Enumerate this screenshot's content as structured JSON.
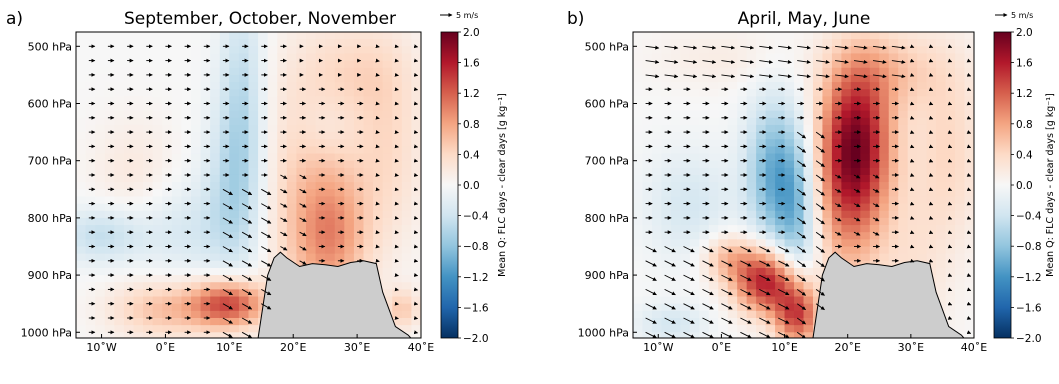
{
  "chart_data": [
    {
      "type": "heatmap",
      "panel_label": "a)",
      "title": "September, October, November",
      "xlabel": "",
      "ylabel": "",
      "xlim": [
        -14,
        40
      ],
      "ylim": [
        1010,
        475
      ],
      "xticks": [
        {
          "v": -10,
          "label": "10˚W"
        },
        {
          "v": 0,
          "label": "0˚E"
        },
        {
          "v": 10,
          "label": "10˚E"
        },
        {
          "v": 20,
          "label": "20˚E"
        },
        {
          "v": 30,
          "label": "30˚E"
        },
        {
          "v": 40,
          "label": "40˚E"
        }
      ],
      "yticks": [
        {
          "v": 500,
          "label": "500 hPa"
        },
        {
          "v": 600,
          "label": "600 hPa"
        },
        {
          "v": 700,
          "label": "700 hPa"
        },
        {
          "v": 800,
          "label": "800 hPa"
        },
        {
          "v": 900,
          "label": "900 hPa"
        },
        {
          "v": 1000,
          "label": "1000 hPa"
        }
      ],
      "blobs": [
        {
          "x": 12,
          "p": 580,
          "sx": 2.5,
          "sp": 130,
          "a": -0.5
        },
        {
          "x": 11,
          "p": 760,
          "sx": 3.5,
          "sp": 110,
          "a": -0.55
        },
        {
          "x": -10,
          "p": 830,
          "sx": 5,
          "sp": 35,
          "a": -0.5
        },
        {
          "x": 3,
          "p": 820,
          "sx": 5,
          "sp": 60,
          "a": -0.3
        },
        {
          "x": 10,
          "p": 950,
          "sx": 4,
          "sp": 30,
          "a": 1.3
        },
        {
          "x": 0,
          "p": 960,
          "sx": 6,
          "sp": 35,
          "a": 0.6
        },
        {
          "x": 26,
          "p": 830,
          "sx": 4,
          "sp": 80,
          "a": 0.7
        },
        {
          "x": 22,
          "p": 750,
          "sx": 6,
          "sp": 160,
          "a": 0.45
        },
        {
          "x": 35,
          "p": 680,
          "sx": 4,
          "sp": 120,
          "a": 0.35
        },
        {
          "x": 30,
          "p": 540,
          "sx": 6,
          "sp": 60,
          "a": 0.3
        },
        {
          "x": 25,
          "p": 640,
          "sx": 3,
          "sp": 40,
          "a": -0.15
        },
        {
          "x": -5,
          "p": 720,
          "sx": 5,
          "sp": 70,
          "a": 0.2
        },
        {
          "x": 37,
          "p": 960,
          "sx": 2,
          "sp": 25,
          "a": 0.5
        }
      ],
      "wind_mode": "sep",
      "terrain": {
        "x": [
          14.5,
          16,
          17,
          18,
          19,
          21,
          23,
          25,
          27,
          29,
          31,
          33,
          34,
          36,
          38,
          38.4
        ],
        "p": [
          1010,
          900,
          870,
          860,
          870,
          885,
          880,
          882,
          885,
          878,
          875,
          880,
          930,
          990,
          1005,
          1010
        ]
      },
      "colorbar": {
        "label": "Mean Q: FLC days - clear days [g kg⁻¹]",
        "ticks": [
          "2.0",
          "1.6",
          "1.2",
          "0.8",
          "0.4",
          "0.0",
          "−0.4",
          "−0.8",
          "−1.2",
          "−1.6",
          "−2.0"
        ],
        "vmin": -2.0,
        "vmax": 2.0
      },
      "quiver_key": {
        "label": "5 m/s"
      },
      "colors": {
        "terrain": "#cdcdcd",
        "positive": "#67001f",
        "negative": "#053061"
      }
    },
    {
      "type": "heatmap",
      "panel_label": "b)",
      "title": "April, May, June",
      "xlabel": "",
      "ylabel": "",
      "xlim": [
        -14,
        40
      ],
      "ylim": [
        1010,
        475
      ],
      "xticks": [
        {
          "v": -10,
          "label": "10˚W"
        },
        {
          "v": 0,
          "label": "0˚E"
        },
        {
          "v": 10,
          "label": "10˚E"
        },
        {
          "v": 20,
          "label": "20˚E"
        },
        {
          "v": 30,
          "label": "30˚E"
        },
        {
          "v": 40,
          "label": "40˚E"
        }
      ],
      "yticks": [
        {
          "v": 500,
          "label": "500 hPa"
        },
        {
          "v": 600,
          "label": "600 hPa"
        },
        {
          "v": 700,
          "label": "700 hPa"
        },
        {
          "v": 800,
          "label": "800 hPa"
        },
        {
          "v": 900,
          "label": "900 hPa"
        },
        {
          "v": 1000,
          "label": "1000 hPa"
        }
      ],
      "blobs": [
        {
          "x": 21.5,
          "p": 660,
          "sx": 4,
          "sp": 95,
          "a": 1.5
        },
        {
          "x": 20,
          "p": 770,
          "sx": 4,
          "sp": 110,
          "a": 0.8
        },
        {
          "x": 7,
          "p": 910,
          "sx": 3.5,
          "sp": 40,
          "a": 1.6
        },
        {
          "x": 12,
          "p": 970,
          "sx": 2.5,
          "sp": 40,
          "a": 1.4
        },
        {
          "x": 1,
          "p": 870,
          "sx": 3,
          "sp": 30,
          "a": 0.6
        },
        {
          "x": 8,
          "p": 720,
          "sx": 3,
          "sp": 90,
          "a": -0.9
        },
        {
          "x": 12,
          "p": 790,
          "sx": 2.5,
          "sp": 100,
          "a": -0.8
        },
        {
          "x": -5,
          "p": 780,
          "sx": 5,
          "sp": 70,
          "a": -0.35
        },
        {
          "x": -8,
          "p": 985,
          "sx": 4,
          "sp": 25,
          "a": -0.35
        },
        {
          "x": 27,
          "p": 540,
          "sx": 6,
          "sp": 50,
          "a": 0.45
        },
        {
          "x": 36,
          "p": 680,
          "sx": 4,
          "sp": 120,
          "a": 0.4
        },
        {
          "x": 30,
          "p": 900,
          "sx": 4,
          "sp": 120,
          "a": 0.25
        },
        {
          "x": 0,
          "p": 520,
          "sx": 8,
          "sp": 40,
          "a": 0.15
        }
      ],
      "wind_mode": "apr",
      "terrain": {
        "x": [
          14.5,
          16,
          17,
          18,
          19,
          21,
          23,
          25,
          27,
          29,
          31,
          33,
          34,
          36,
          38,
          38.4
        ],
        "p": [
          1010,
          900,
          870,
          860,
          870,
          885,
          880,
          882,
          885,
          878,
          875,
          880,
          930,
          990,
          1005,
          1010
        ]
      },
      "colorbar": {
        "label": "Mean Q: FLC days - clear days [g kg⁻¹]",
        "ticks": [
          "2.0",
          "1.6",
          "1.2",
          "0.8",
          "0.4",
          "0.0",
          "−0.4",
          "−0.8",
          "−1.2",
          "−1.6",
          "−2.0"
        ],
        "vmin": -2.0,
        "vmax": 2.0
      },
      "quiver_key": {
        "label": "5 m/s"
      },
      "colors": {
        "terrain": "#cdcdcd",
        "positive": "#67001f",
        "negative": "#053061"
      }
    }
  ]
}
